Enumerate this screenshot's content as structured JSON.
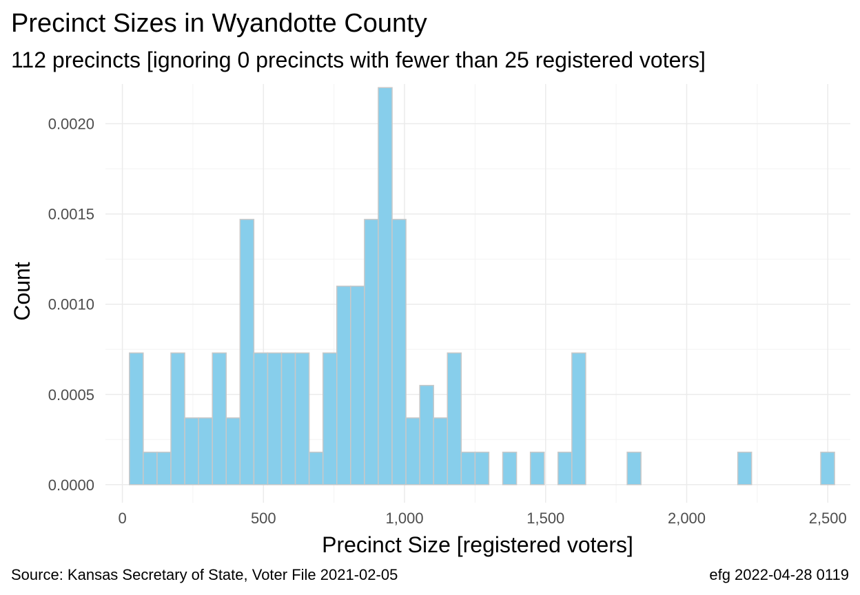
{
  "title": "Precinct Sizes in Wyandotte County",
  "subtitle": "112 precincts [ignoring 0 precincts with fewer than 25 registered voters]",
  "caption_left": "Source:  Kansas Secretary of State, Voter File  2021-02-05",
  "caption_right": "efg 2022-04-28 0119",
  "colors": {
    "bar_fill": "#87CEEB",
    "bar_stroke": "#C8C8C8",
    "grid_major": "#EBEBEB",
    "grid_minor": "#F3F3F3"
  },
  "chart_data": {
    "type": "bar",
    "histogram": true,
    "xlabel": "Precinct Size [registered voters]",
    "ylabel": "Count",
    "xlim": [
      -60,
      2580
    ],
    "ylim": [
      -0.0001,
      0.00222
    ],
    "grid": true,
    "x_ticks": [
      0,
      500,
      1000,
      1500,
      2000,
      2500
    ],
    "x_tick_labels": [
      "0",
      "500",
      "1,000",
      "1,500",
      "2,000",
      "2,500"
    ],
    "y_ticks": [
      0,
      0.0005,
      0.001,
      0.0015,
      0.002
    ],
    "y_tick_labels": [
      "0.0000",
      "0.0005",
      "0.0010",
      "0.0015",
      "0.0020"
    ],
    "bin_width": 49,
    "bin_start": 25,
    "values": [
      0.00073,
      0.00018,
      0.00018,
      0.00073,
      0.00037,
      0.00037,
      0.00073,
      0.00037,
      0.00147,
      0.00073,
      0.00073,
      0.00073,
      0.00073,
      0.00018,
      0.00073,
      0.0011,
      0.0011,
      0.00147,
      0.0022,
      0.00147,
      0.00037,
      0.00055,
      0.00037,
      0.00073,
      0.00018,
      0.00018,
      0,
      0.00018,
      0,
      0.00018,
      0,
      0.00018,
      0.00073,
      0,
      0,
      0,
      0.00018,
      0,
      0,
      0,
      0,
      0,
      0,
      0,
      0.00018,
      0,
      0,
      0,
      0,
      0,
      0.00018
    ]
  }
}
